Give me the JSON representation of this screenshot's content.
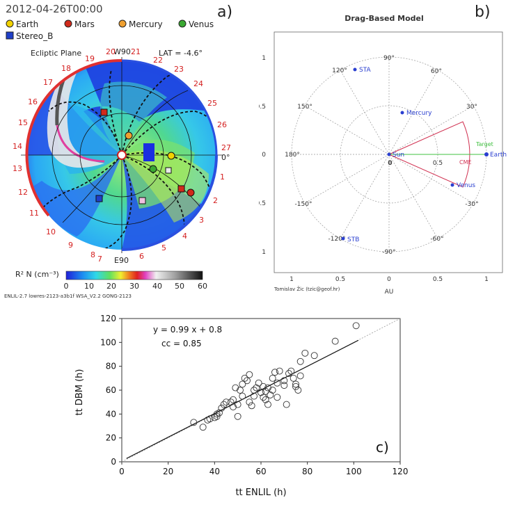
{
  "panel_a": {
    "datetime": "2012-04-26T00:00",
    "label": "a)",
    "legend": [
      {
        "name": "Earth",
        "color": "#f2d200",
        "shape": "circle"
      },
      {
        "name": "Mars",
        "color": "#d12a1b",
        "shape": "circle"
      },
      {
        "name": "Mercury",
        "color": "#f0a030",
        "shape": "circle"
      },
      {
        "name": "Venus",
        "color": "#3aa832",
        "shape": "circle"
      },
      {
        "name": "Stereo_B",
        "color": "#1f3fc8",
        "shape": "square"
      }
    ],
    "plane_label": "Ecliptic Plane",
    "top_label": "W90",
    "lat_label": "LAT = -4.6°",
    "bottom_label": "E90",
    "zero_label": "0°",
    "rim_numbers": [
      "20",
      "19",
      "18",
      "17",
      "16",
      "15",
      "14",
      "13",
      "12",
      "11",
      "10",
      "9",
      "8",
      "7",
      "6",
      "5",
      "4",
      "3",
      "2",
      "1",
      "27",
      "26",
      "25",
      "24",
      "23",
      "22",
      "21"
    ],
    "colorbar_label": "R² N (cm⁻³)",
    "colorbar_ticks": [
      "0",
      "10",
      "20",
      "30",
      "40",
      "50",
      "60"
    ],
    "footer": "ENLIL-2.7 lowres-2123-a3b1f WSA_V2.2 GONG-2123"
  },
  "panel_b": {
    "title": "Drag-Based Model",
    "label": "b)",
    "angles": [
      "90°",
      "60°",
      "30°",
      "0",
      "-30°",
      "-60°",
      "-90°",
      "-120°",
      "-150°",
      "180°",
      "150°",
      "120°"
    ],
    "y_ticks": [
      "1",
      "0.5",
      "0",
      "0.5",
      "1"
    ],
    "x_ticks": [
      "1",
      "0.5",
      "0",
      "0.5",
      "1"
    ],
    "inner_ticks": [
      "0",
      "0.5"
    ],
    "axis_label": "AU",
    "objects": [
      "STA",
      "Mercury",
      "Sun",
      "Venus",
      "STB",
      "Earth"
    ],
    "target_label": "Target",
    "cme_label": "CME",
    "credit": "Tomislav Žic (tzic@geof.hr)"
  },
  "chart_data": {
    "type": "scatter",
    "label": "c)",
    "equation": "y = 0.99 x + 0.8",
    "cc": "cc = 0.85",
    "xlabel": "tt ENLIL  (h)",
    "ylabel": "tt DBM  (h)",
    "xlim": [
      0,
      120
    ],
    "ylim": [
      0,
      120
    ],
    "xticks": [
      0,
      20,
      40,
      60,
      80,
      100,
      120
    ],
    "yticks": [
      0,
      20,
      40,
      60,
      80,
      100,
      120
    ],
    "fit": {
      "slope": 0.99,
      "intercept": 0.8,
      "x_range": [
        2,
        102
      ]
    },
    "identity_line": true,
    "points": [
      [
        31,
        33
      ],
      [
        35,
        29
      ],
      [
        37,
        35
      ],
      [
        38,
        36
      ],
      [
        40,
        37
      ],
      [
        41,
        38
      ],
      [
        41,
        40
      ],
      [
        42,
        41
      ],
      [
        43,
        45
      ],
      [
        44,
        48
      ],
      [
        45,
        50
      ],
      [
        47,
        50
      ],
      [
        48,
        46
      ],
      [
        48,
        52
      ],
      [
        49,
        62
      ],
      [
        50,
        38
      ],
      [
        50,
        48
      ],
      [
        51,
        60
      ],
      [
        52,
        55
      ],
      [
        52,
        65
      ],
      [
        53,
        70
      ],
      [
        54,
        68
      ],
      [
        55,
        73
      ],
      [
        55,
        50
      ],
      [
        56,
        47
      ],
      [
        57,
        60
      ],
      [
        57,
        55
      ],
      [
        58,
        62
      ],
      [
        59,
        66
      ],
      [
        60,
        58
      ],
      [
        61,
        63
      ],
      [
        61,
        54
      ],
      [
        62,
        52
      ],
      [
        62,
        59
      ],
      [
        63,
        62
      ],
      [
        63,
        48
      ],
      [
        64,
        56
      ],
      [
        65,
        60
      ],
      [
        65,
        70
      ],
      [
        66,
        75
      ],
      [
        67,
        66
      ],
      [
        67,
        54
      ],
      [
        68,
        76
      ],
      [
        70,
        64
      ],
      [
        70,
        68
      ],
      [
        71,
        48
      ],
      [
        72,
        74
      ],
      [
        73,
        76
      ],
      [
        74,
        70
      ],
      [
        75,
        65
      ],
      [
        75,
        63
      ],
      [
        76,
        60
      ],
      [
        77,
        72
      ],
      [
        77,
        84
      ],
      [
        79,
        91
      ],
      [
        83,
        89
      ],
      [
        92,
        101
      ],
      [
        101,
        114
      ]
    ]
  }
}
